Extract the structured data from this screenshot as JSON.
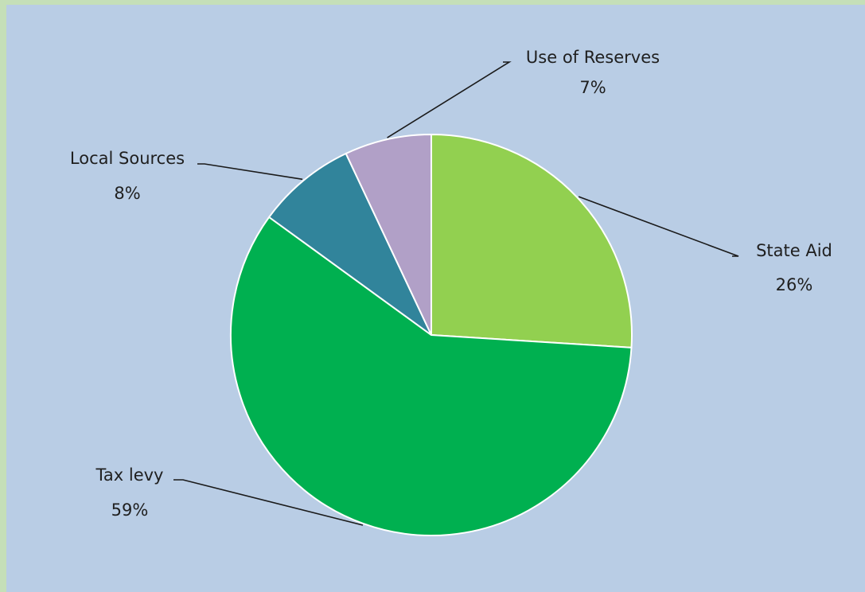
{
  "chart_data": {
    "type": "pie",
    "title": "",
    "slices": [
      {
        "label": "State Aid",
        "pct_label": "26%",
        "value": 26,
        "color": "#92d050"
      },
      {
        "label": "Tax levy",
        "pct_label": "59%",
        "value": 59,
        "color": "#00b050"
      },
      {
        "label": "Local Sources",
        "pct_label": "8%",
        "value": 8,
        "color": "#31849b"
      },
      {
        "label": "Use of Reserves",
        "pct_label": "7%",
        "value": 7,
        "color": "#b1a0c7"
      }
    ],
    "start_angle_deg": 0,
    "direction": "clockwise",
    "background_color": "#b9cde5",
    "border_color": "#c5dfb8"
  }
}
